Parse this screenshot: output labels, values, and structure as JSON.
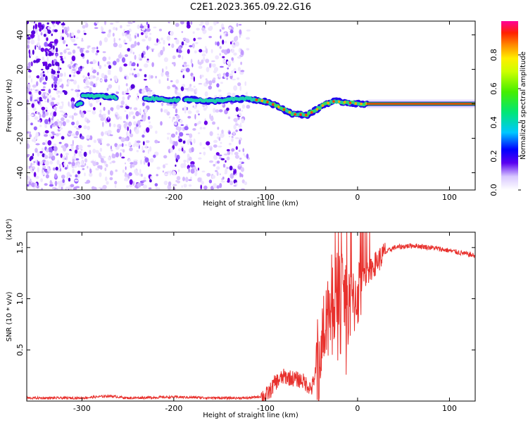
{
  "title": "C2E1.2023.365.09.22.G16",
  "colors": {
    "trace": "#e8302c",
    "specklePurple": "#6a00e8",
    "ridgeRed": "#ff2200"
  },
  "chart_data": [
    {
      "type": "heatmap",
      "xlabel": "Height of straight line (km)",
      "ylabel": "Frequency (Hz)",
      "xlim": [
        -360,
        128
      ],
      "ylim": [
        -50,
        48
      ],
      "xticks": [
        -300,
        -200,
        -100,
        0,
        100
      ],
      "xtick_labels": [
        "-300",
        "-200",
        "-100",
        "0",
        "100"
      ],
      "yticks": [
        -40,
        -20,
        0,
        20,
        40
      ],
      "ytick_labels": [
        "-40",
        "-20",
        "0",
        "20",
        "40"
      ],
      "colorbar": {
        "label": "Normalized spectral amplitude",
        "range": [
          0,
          1
        ],
        "ticks": [
          0.0,
          0.2,
          0.4,
          0.6,
          0.8
        ],
        "tick_labels": [
          "0.0",
          "0.2",
          "0.4",
          "0.6",
          "0.8"
        ],
        "colormap": "gist_ncar-like"
      },
      "ridge": {
        "description_points": [
          {
            "x": -300,
            "y": 4.5
          },
          {
            "x": -280,
            "y": 4.5
          },
          {
            "x": -260,
            "y": 3.5
          },
          {
            "x": -220,
            "y": 3
          },
          {
            "x": -200,
            "y": 2
          },
          {
            "x": -180,
            "y": 2.5
          },
          {
            "x": -160,
            "y": 1.5
          },
          {
            "x": -140,
            "y": 2.5
          },
          {
            "x": -120,
            "y": 3
          },
          {
            "x": -100,
            "y": 1.5
          },
          {
            "x": -85,
            "y": -2
          },
          {
            "x": -70,
            "y": -6
          },
          {
            "x": -55,
            "y": -6.5
          },
          {
            "x": -45,
            "y": -3.5
          },
          {
            "x": -35,
            "y": 0
          },
          {
            "x": -25,
            "y": 1.5
          },
          {
            "x": -15,
            "y": 1
          },
          {
            "x": 0,
            "y": 0
          },
          {
            "x": 60,
            "y": 0
          },
          {
            "x": 128,
            "y": 0
          }
        ]
      }
    },
    {
      "type": "line",
      "xlabel": "Height of straight line (km)",
      "ylabel": "SNR (10 * v/v)",
      "scale_note": "(x10⁴)",
      "xlim": [
        -360,
        128
      ],
      "ylim": [
        0,
        1.65
      ],
      "xticks": [
        -300,
        -200,
        -100,
        0,
        100
      ],
      "xtick_labels": [
        "-300",
        "-200",
        "-100",
        "0",
        "100"
      ],
      "yticks": [
        0.5,
        1.0,
        1.5
      ],
      "ytick_labels": [
        "0.5",
        "1.0",
        "1.5"
      ],
      "series": [
        {
          "points": [
            [
              -360,
              0.03
            ],
            [
              -300,
              0.03
            ],
            [
              -270,
              0.05
            ],
            [
              -250,
              0.03
            ],
            [
              -200,
              0.04
            ],
            [
              -150,
              0.03
            ],
            [
              -120,
              0.03
            ],
            [
              -100,
              0.05
            ],
            [
              -95,
              0.1
            ],
            [
              -90,
              0.18
            ],
            [
              -80,
              0.24
            ],
            [
              -70,
              0.22
            ],
            [
              -60,
              0.2
            ],
            [
              -50,
              0.12
            ],
            [
              -45,
              0.3
            ],
            [
              -40,
              0.55
            ],
            [
              -35,
              0.8
            ],
            [
              -30,
              0.95
            ],
            [
              -25,
              1.05
            ],
            [
              -20,
              1.1
            ],
            [
              -10,
              0.9
            ],
            [
              -5,
              0.95
            ],
            [
              0,
              1.05
            ],
            [
              10,
              1.25
            ],
            [
              20,
              1.35
            ],
            [
              30,
              1.45
            ],
            [
              40,
              1.5
            ],
            [
              60,
              1.52
            ],
            [
              80,
              1.5
            ],
            [
              100,
              1.47
            ],
            [
              128,
              1.42
            ]
          ]
        }
      ]
    }
  ]
}
